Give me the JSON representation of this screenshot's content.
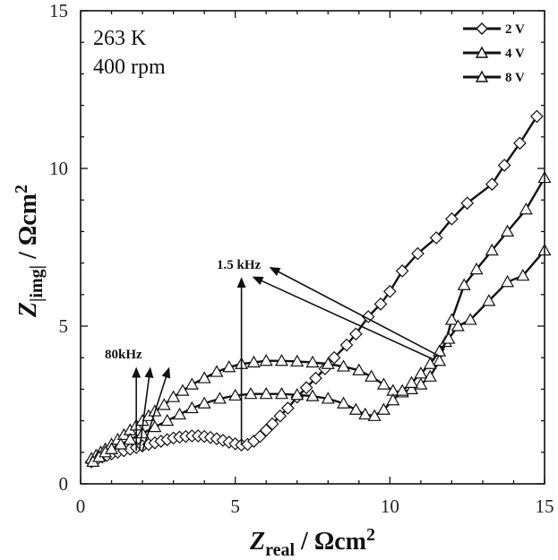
{
  "chart_data": {
    "type": "scatter",
    "xlim": [
      0,
      15
    ],
    "ylim": [
      0,
      15
    ],
    "x_ticks": [
      "0",
      "5",
      "10",
      "15"
    ],
    "y_ticks": [
      "0",
      "5",
      "10",
      "15"
    ],
    "x_axis_label": {
      "main": "Z",
      "sub": "real",
      "unit": " / Ωcm",
      "sup": "2"
    },
    "y_axis_label": {
      "main": "Z",
      "sub": "|img|",
      "unit": " / Ωcm",
      "sup": "2"
    },
    "annotation_lines": [
      "263 K",
      "400 rpm"
    ],
    "frequency_labels": {
      "high": "80kHz",
      "low": "1.5 kHz"
    },
    "legend_position": "top-right",
    "series": [
      {
        "name": "2 V",
        "marker": "diamond",
        "points": [
          [
            0.35,
            0.7
          ],
          [
            0.45,
            0.75
          ],
          [
            0.55,
            0.8
          ],
          [
            0.7,
            0.85
          ],
          [
            0.85,
            0.9
          ],
          [
            1.0,
            0.95
          ],
          [
            1.2,
            1.0
          ],
          [
            1.4,
            1.05
          ],
          [
            1.6,
            1.1
          ],
          [
            1.8,
            1.15
          ],
          [
            2.0,
            1.2
          ],
          [
            2.2,
            1.25
          ],
          [
            2.4,
            1.3
          ],
          [
            2.6,
            1.35
          ],
          [
            2.8,
            1.4
          ],
          [
            3.0,
            1.45
          ],
          [
            3.2,
            1.48
          ],
          [
            3.4,
            1.5
          ],
          [
            3.6,
            1.52
          ],
          [
            3.8,
            1.52
          ],
          [
            4.0,
            1.5
          ],
          [
            4.2,
            1.47
          ],
          [
            4.4,
            1.43
          ],
          [
            4.6,
            1.38
          ],
          [
            4.8,
            1.32
          ],
          [
            5.0,
            1.27
          ],
          [
            5.2,
            1.23
          ],
          [
            5.4,
            1.25
          ],
          [
            5.6,
            1.35
          ],
          [
            5.8,
            1.5
          ],
          [
            6.0,
            1.7
          ],
          [
            6.2,
            1.9
          ],
          [
            6.45,
            2.15
          ],
          [
            6.7,
            2.4
          ],
          [
            7.0,
            2.75
          ],
          [
            7.3,
            3.05
          ],
          [
            7.6,
            3.35
          ],
          [
            7.9,
            3.65
          ],
          [
            8.2,
            4.0
          ],
          [
            8.6,
            4.4
          ],
          [
            8.9,
            4.75
          ],
          [
            9.3,
            5.3
          ],
          [
            9.7,
            5.7
          ],
          [
            10.0,
            6.1
          ],
          [
            10.4,
            6.75
          ],
          [
            10.9,
            7.3
          ],
          [
            11.5,
            7.8
          ],
          [
            12.0,
            8.4
          ],
          [
            12.5,
            8.9
          ],
          [
            13.3,
            9.5
          ],
          [
            13.7,
            10.1
          ],
          [
            14.2,
            10.8
          ],
          [
            14.75,
            11.65
          ]
        ]
      },
      {
        "name": "4 V",
        "marker": "triangle",
        "points": [
          [
            0.35,
            0.8
          ],
          [
            0.5,
            0.9
          ],
          [
            0.65,
            1.0
          ],
          [
            0.8,
            1.1
          ],
          [
            1.0,
            1.25
          ],
          [
            1.2,
            1.4
          ],
          [
            1.4,
            1.55
          ],
          [
            1.6,
            1.7
          ],
          [
            1.8,
            1.85
          ],
          [
            2.0,
            2.0
          ],
          [
            2.2,
            2.15
          ],
          [
            2.4,
            2.3
          ],
          [
            2.7,
            2.5
          ],
          [
            3.0,
            2.75
          ],
          [
            3.3,
            2.95
          ],
          [
            3.6,
            3.15
          ],
          [
            4.0,
            3.35
          ],
          [
            4.4,
            3.55
          ],
          [
            4.8,
            3.7
          ],
          [
            5.2,
            3.8
          ],
          [
            5.6,
            3.85
          ],
          [
            6.0,
            3.9
          ],
          [
            6.5,
            3.9
          ],
          [
            7.0,
            3.88
          ],
          [
            7.5,
            3.85
          ],
          [
            8.0,
            3.8
          ],
          [
            8.5,
            3.72
          ],
          [
            9.0,
            3.6
          ],
          [
            9.4,
            3.4
          ],
          [
            9.8,
            3.15
          ],
          [
            10.1,
            2.95
          ],
          [
            10.4,
            2.9
          ],
          [
            10.7,
            3.0
          ],
          [
            11.0,
            3.15
          ],
          [
            11.3,
            3.4
          ],
          [
            11.6,
            3.9
          ],
          [
            11.8,
            4.5
          ],
          [
            12.0,
            5.2
          ],
          [
            12.4,
            6.3
          ],
          [
            12.8,
            6.8
          ],
          [
            13.3,
            7.4
          ],
          [
            13.8,
            8.0
          ],
          [
            14.4,
            8.7
          ],
          [
            15.0,
            9.7
          ]
        ]
      },
      {
        "name": "8 V",
        "marker": "triangle",
        "points": [
          [
            0.4,
            0.7
          ],
          [
            0.6,
            0.85
          ],
          [
            0.8,
            1.0
          ],
          [
            1.0,
            1.1
          ],
          [
            1.3,
            1.25
          ],
          [
            1.6,
            1.4
          ],
          [
            2.0,
            1.6
          ],
          [
            2.4,
            1.8
          ],
          [
            2.8,
            2.0
          ],
          [
            3.2,
            2.2
          ],
          [
            3.6,
            2.4
          ],
          [
            4.0,
            2.55
          ],
          [
            4.5,
            2.7
          ],
          [
            5.0,
            2.8
          ],
          [
            5.5,
            2.85
          ],
          [
            6.0,
            2.85
          ],
          [
            6.5,
            2.85
          ],
          [
            7.0,
            2.82
          ],
          [
            7.5,
            2.78
          ],
          [
            8.0,
            2.7
          ],
          [
            8.5,
            2.55
          ],
          [
            8.9,
            2.35
          ],
          [
            9.2,
            2.2
          ],
          [
            9.5,
            2.15
          ],
          [
            9.8,
            2.35
          ],
          [
            10.1,
            2.65
          ],
          [
            10.4,
            2.95
          ],
          [
            10.7,
            3.2
          ],
          [
            11.0,
            3.5
          ],
          [
            11.3,
            3.8
          ],
          [
            11.6,
            4.2
          ],
          [
            11.9,
            4.6
          ],
          [
            12.2,
            5.0
          ],
          [
            12.6,
            5.2
          ],
          [
            13.2,
            5.8
          ],
          [
            13.8,
            6.4
          ],
          [
            14.3,
            6.6
          ],
          [
            15.0,
            7.4
          ]
        ]
      }
    ],
    "arrows": [
      {
        "from": [
          1.8,
          1.05
        ],
        "to": [
          1.8,
          3.65
        ]
      },
      {
        "from": [
          1.9,
          1.05
        ],
        "to": [
          2.25,
          3.65
        ]
      },
      {
        "from": [
          2.0,
          1.05
        ],
        "to": [
          2.85,
          3.65
        ]
      },
      {
        "from": [
          5.2,
          1.23
        ],
        "to": [
          5.2,
          6.5
        ]
      },
      {
        "from": [
          11.4,
          3.95
        ],
        "to": [
          5.6,
          6.55
        ]
      },
      {
        "from": [
          11.6,
          4.05
        ],
        "to": [
          6.15,
          6.85
        ]
      }
    ]
  }
}
